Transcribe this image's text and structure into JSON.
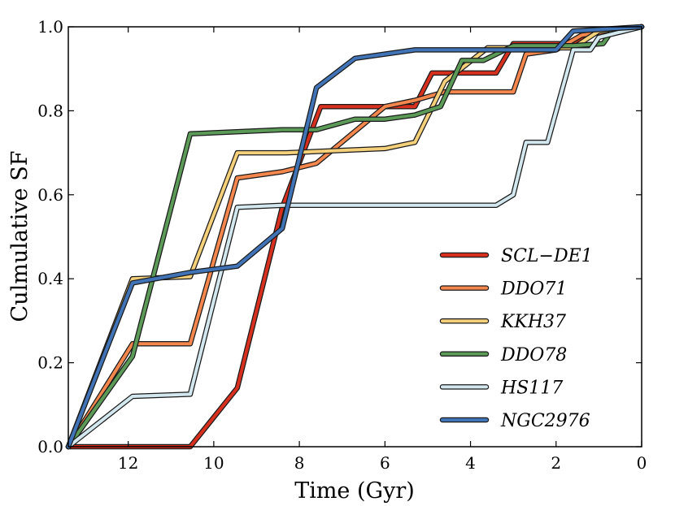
{
  "chart_data": {
    "type": "line",
    "title": "",
    "xlabel": "Time (Gyr)",
    "ylabel": "Culmulative SF",
    "xlim": [
      13.4,
      0
    ],
    "ylim": [
      0,
      1.0
    ],
    "xticks": [
      12,
      10,
      8,
      6,
      4,
      2,
      0
    ],
    "xtick_labels": [
      "12",
      "10",
      "8",
      "6",
      "4",
      "2",
      "0"
    ],
    "yticks": [
      0.0,
      0.2,
      0.4,
      0.6,
      0.8,
      1.0
    ],
    "ytick_labels": [
      "0.0",
      "0.2",
      "0.4",
      "0.6",
      "0.8",
      "1.0"
    ],
    "legend_position": "lower-right",
    "grid": false,
    "series": [
      {
        "name": "SCL−DE1",
        "color": "#d7301f",
        "points": [
          [
            13.4,
            0.0
          ],
          [
            10.55,
            0.0
          ],
          [
            9.45,
            0.14
          ],
          [
            8.4,
            0.57
          ],
          [
            7.5,
            0.81
          ],
          [
            5.3,
            0.81
          ],
          [
            4.9,
            0.89
          ],
          [
            3.4,
            0.89
          ],
          [
            3.0,
            0.96
          ],
          [
            1.6,
            0.96
          ],
          [
            1.0,
            0.99
          ],
          [
            0.0,
            1.0
          ]
        ]
      },
      {
        "name": "DDO71",
        "color": "#f4874e",
        "points": [
          [
            13.4,
            0.0
          ],
          [
            11.9,
            0.245
          ],
          [
            10.55,
            0.245
          ],
          [
            9.45,
            0.64
          ],
          [
            8.4,
            0.655
          ],
          [
            7.6,
            0.675
          ],
          [
            6.0,
            0.81
          ],
          [
            5.3,
            0.825
          ],
          [
            4.6,
            0.845
          ],
          [
            3.0,
            0.845
          ],
          [
            2.7,
            0.935
          ],
          [
            2.0,
            0.945
          ],
          [
            1.4,
            0.98
          ],
          [
            0.0,
            1.0
          ]
        ]
      },
      {
        "name": "KKH37",
        "color": "#f5d07a",
        "points": [
          [
            13.4,
            0.0
          ],
          [
            11.9,
            0.4
          ],
          [
            10.55,
            0.405
          ],
          [
            9.45,
            0.7
          ],
          [
            8.3,
            0.7
          ],
          [
            6.0,
            0.71
          ],
          [
            5.3,
            0.725
          ],
          [
            4.6,
            0.87
          ],
          [
            3.6,
            0.95
          ],
          [
            1.6,
            0.95
          ],
          [
            1.0,
            0.99
          ],
          [
            0.0,
            1.0
          ]
        ]
      },
      {
        "name": "DDO78",
        "color": "#5b9a57",
        "points": [
          [
            13.4,
            0.0
          ],
          [
            11.9,
            0.215
          ],
          [
            10.55,
            0.745
          ],
          [
            8.4,
            0.755
          ],
          [
            7.6,
            0.755
          ],
          [
            6.7,
            0.78
          ],
          [
            6.0,
            0.78
          ],
          [
            5.3,
            0.79
          ],
          [
            4.7,
            0.81
          ],
          [
            4.2,
            0.92
          ],
          [
            3.7,
            0.92
          ],
          [
            3.0,
            0.955
          ],
          [
            1.6,
            0.955
          ],
          [
            0.9,
            0.96
          ],
          [
            0.7,
            0.99
          ],
          [
            0.0,
            1.0
          ]
        ]
      },
      {
        "name": "HS117",
        "color": "#d2e8ee",
        "points": [
          [
            13.4,
            0.0
          ],
          [
            11.9,
            0.12
          ],
          [
            10.55,
            0.125
          ],
          [
            9.45,
            0.57
          ],
          [
            8.4,
            0.575
          ],
          [
            7.6,
            0.575
          ],
          [
            3.4,
            0.575
          ],
          [
            3.0,
            0.6
          ],
          [
            2.7,
            0.725
          ],
          [
            2.2,
            0.725
          ],
          [
            1.6,
            0.945
          ],
          [
            1.2,
            0.945
          ],
          [
            1.0,
            0.975
          ],
          [
            0.0,
            1.0
          ]
        ]
      },
      {
        "name": "NGC2976",
        "color": "#4174b6",
        "points": [
          [
            13.4,
            0.0
          ],
          [
            11.9,
            0.39
          ],
          [
            10.55,
            0.415
          ],
          [
            9.45,
            0.43
          ],
          [
            8.4,
            0.52
          ],
          [
            7.6,
            0.855
          ],
          [
            6.7,
            0.925
          ],
          [
            5.3,
            0.945
          ],
          [
            4.6,
            0.945
          ],
          [
            2.0,
            0.945
          ],
          [
            1.6,
            0.99
          ],
          [
            0.8,
            0.995
          ],
          [
            0.0,
            1.0
          ]
        ]
      }
    ]
  }
}
